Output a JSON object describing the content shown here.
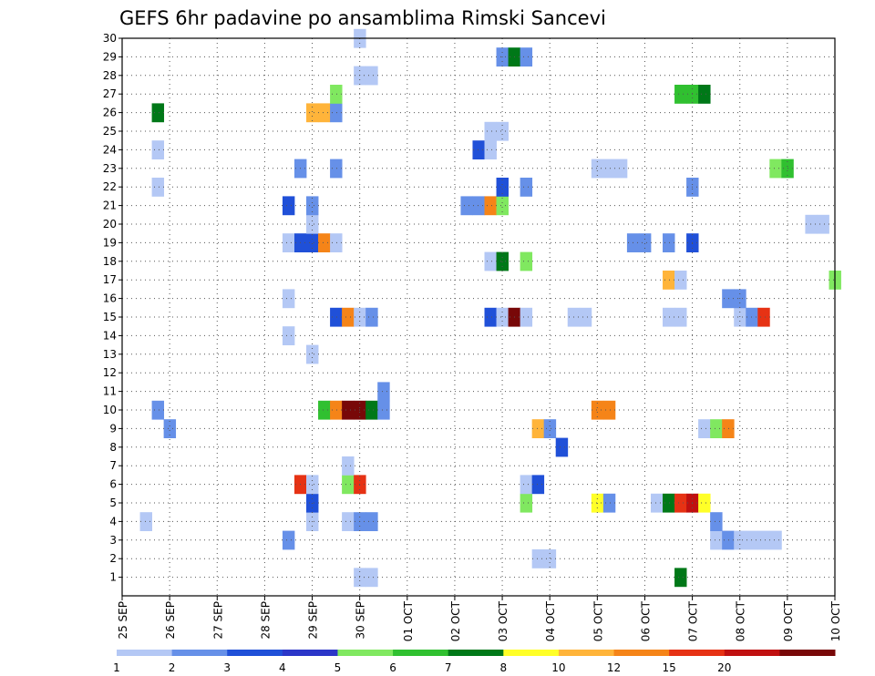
{
  "chart_data": {
    "type": "heatmap",
    "title": "GEFS 6hr padavine po ansamblima Rimski Sancevi",
    "x_tick_labels": [
      "25 SEP",
      "26 SEP",
      "27 SEP",
      "28 SEP",
      "29 SEP",
      "30 SEP",
      "01 OCT",
      "02 OCT",
      "03 OCT",
      "04 OCT",
      "05 OCT",
      "06 OCT",
      "07 OCT",
      "08 OCT",
      "09 OCT",
      "10 OCT"
    ],
    "y_tick_labels": [
      "1",
      "2",
      "3",
      "4",
      "5",
      "6",
      "7",
      "8",
      "9",
      "10",
      "11",
      "12",
      "13",
      "14",
      "15",
      "16",
      "17",
      "18",
      "19",
      "20",
      "21",
      "22",
      "23",
      "24",
      "25",
      "26",
      "27",
      "28",
      "29",
      "30"
    ],
    "x_unit": "6-hour step from 25 SEP 00z",
    "x_range": [
      0,
      60
    ],
    "y_range": [
      0,
      30
    ],
    "grid": true,
    "colorbar": {
      "bounds": [
        "1",
        "2",
        "3",
        "4",
        "5",
        "6",
        "7",
        "8",
        "10",
        "12",
        "15",
        "20"
      ],
      "colors": [
        "#b4c8f5",
        "#6690e8",
        "#2050d8",
        "#2b36c8",
        "#80e860",
        "#30c030",
        "#007818",
        "#ffff28",
        "#ffb43a",
        "#f58418",
        "#e63214",
        "#c01010",
        "#780808"
      ]
    },
    "cells": [
      {
        "x": 2,
        "y": 4,
        "c": "#b4c8f5"
      },
      {
        "x": 3,
        "y": 10,
        "c": "#6690e8"
      },
      {
        "x": 3,
        "y": 22,
        "c": "#b4c8f5"
      },
      {
        "x": 3,
        "y": 24,
        "c": "#b4c8f5"
      },
      {
        "x": 3,
        "y": 26,
        "c": "#007818"
      },
      {
        "x": 4,
        "y": 9,
        "c": "#6690e8"
      },
      {
        "x": 14,
        "y": 3,
        "c": "#6690e8"
      },
      {
        "x": 14,
        "y": 14,
        "c": "#b4c8f5"
      },
      {
        "x": 14,
        "y": 16,
        "c": "#b4c8f5"
      },
      {
        "x": 14,
        "y": 19,
        "c": "#b4c8f5"
      },
      {
        "x": 14,
        "y": 21,
        "c": "#2050d8"
      },
      {
        "x": 15,
        "y": 6,
        "c": "#e63214"
      },
      {
        "x": 15,
        "y": 19,
        "c": "#2050d8"
      },
      {
        "x": 15,
        "y": 23,
        "c": "#6690e8"
      },
      {
        "x": 16,
        "y": 4,
        "c": "#b4c8f5"
      },
      {
        "x": 16,
        "y": 5,
        "c": "#2050d8"
      },
      {
        "x": 16,
        "y": 6,
        "c": "#b4c8f5"
      },
      {
        "x": 16,
        "y": 13,
        "c": "#b4c8f5"
      },
      {
        "x": 16,
        "y": 19,
        "c": "#2050d8"
      },
      {
        "x": 16,
        "y": 20,
        "c": "#b4c8f5"
      },
      {
        "x": 16,
        "y": 21,
        "c": "#6690e8"
      },
      {
        "x": 16,
        "y": 26,
        "c": "#ffb43a"
      },
      {
        "x": 17,
        "y": 10,
        "c": "#30c030"
      },
      {
        "x": 17,
        "y": 19,
        "c": "#f58418"
      },
      {
        "x": 17,
        "y": 26,
        "c": "#ffb43a"
      },
      {
        "x": 18,
        "y": 10,
        "c": "#f58418"
      },
      {
        "x": 18,
        "y": 15,
        "c": "#2050d8"
      },
      {
        "x": 18,
        "y": 19,
        "c": "#b4c8f5"
      },
      {
        "x": 18,
        "y": 23,
        "c": "#6690e8"
      },
      {
        "x": 18,
        "y": 26,
        "c": "#6690e8"
      },
      {
        "x": 18,
        "y": 27,
        "c": "#80e860"
      },
      {
        "x": 19,
        "y": 4,
        "c": "#b4c8f5"
      },
      {
        "x": 19,
        "y": 6,
        "c": "#80e860"
      },
      {
        "x": 19,
        "y": 7,
        "c": "#b4c8f5"
      },
      {
        "x": 19,
        "y": 10,
        "c": "#780808"
      },
      {
        "x": 19,
        "y": 15,
        "c": "#f58418"
      },
      {
        "x": 20,
        "y": 1,
        "c": "#b4c8f5"
      },
      {
        "x": 20,
        "y": 4,
        "c": "#6690e8"
      },
      {
        "x": 20,
        "y": 6,
        "c": "#e63214"
      },
      {
        "x": 20,
        "y": 10,
        "c": "#780808"
      },
      {
        "x": 20,
        "y": 15,
        "c": "#b4c8f5"
      },
      {
        "x": 20,
        "y": 28,
        "c": "#b4c8f5"
      },
      {
        "x": 20,
        "y": 30,
        "c": "#b4c8f5"
      },
      {
        "x": 21,
        "y": 1,
        "c": "#b4c8f5"
      },
      {
        "x": 21,
        "y": 4,
        "c": "#6690e8"
      },
      {
        "x": 21,
        "y": 10,
        "c": "#007818"
      },
      {
        "x": 21,
        "y": 15,
        "c": "#6690e8"
      },
      {
        "x": 21,
        "y": 28,
        "c": "#b4c8f5"
      },
      {
        "x": 22,
        "y": 10,
        "c": "#6690e8"
      },
      {
        "x": 22,
        "y": 11,
        "c": "#6690e8"
      },
      {
        "x": 29,
        "y": 21,
        "c": "#6690e8"
      },
      {
        "x": 30,
        "y": 21,
        "c": "#6690e8"
      },
      {
        "x": 30,
        "y": 24,
        "c": "#2050d8"
      },
      {
        "x": 31,
        "y": 15,
        "c": "#2050d8"
      },
      {
        "x": 31,
        "y": 18,
        "c": "#b4c8f5"
      },
      {
        "x": 31,
        "y": 21,
        "c": "#f58418"
      },
      {
        "x": 31,
        "y": 24,
        "c": "#b4c8f5"
      },
      {
        "x": 31,
        "y": 25,
        "c": "#b4c8f5"
      },
      {
        "x": 32,
        "y": 15,
        "c": "#b4c8f5"
      },
      {
        "x": 32,
        "y": 18,
        "c": "#007818"
      },
      {
        "x": 32,
        "y": 21,
        "c": "#80e860"
      },
      {
        "x": 32,
        "y": 22,
        "c": "#2050d8"
      },
      {
        "x": 32,
        "y": 25,
        "c": "#b4c8f5"
      },
      {
        "x": 32,
        "y": 29,
        "c": "#6690e8"
      },
      {
        "x": 33,
        "y": 15,
        "c": "#780808"
      },
      {
        "x": 33,
        "y": 29,
        "c": "#007818"
      },
      {
        "x": 34,
        "y": 5,
        "c": "#80e860"
      },
      {
        "x": 34,
        "y": 6,
        "c": "#b4c8f5"
      },
      {
        "x": 34,
        "y": 15,
        "c": "#b4c8f5"
      },
      {
        "x": 34,
        "y": 18,
        "c": "#80e860"
      },
      {
        "x": 34,
        "y": 22,
        "c": "#6690e8"
      },
      {
        "x": 34,
        "y": 29,
        "c": "#6690e8"
      },
      {
        "x": 35,
        "y": 2,
        "c": "#b4c8f5"
      },
      {
        "x": 35,
        "y": 6,
        "c": "#2050d8"
      },
      {
        "x": 35,
        "y": 9,
        "c": "#ffb43a"
      },
      {
        "x": 36,
        "y": 2,
        "c": "#b4c8f5"
      },
      {
        "x": 36,
        "y": 9,
        "c": "#6690e8"
      },
      {
        "x": 37,
        "y": 8,
        "c": "#2050d8"
      },
      {
        "x": 38,
        "y": 15,
        "c": "#b4c8f5"
      },
      {
        "x": 39,
        "y": 15,
        "c": "#b4c8f5"
      },
      {
        "x": 40,
        "y": 5,
        "c": "#ffff28"
      },
      {
        "x": 40,
        "y": 10,
        "c": "#f58418"
      },
      {
        "x": 40,
        "y": 23,
        "c": "#b4c8f5"
      },
      {
        "x": 41,
        "y": 5,
        "c": "#6690e8"
      },
      {
        "x": 41,
        "y": 10,
        "c": "#f58418"
      },
      {
        "x": 41,
        "y": 23,
        "c": "#b4c8f5"
      },
      {
        "x": 42,
        "y": 23,
        "c": "#b4c8f5"
      },
      {
        "x": 43,
        "y": 19,
        "c": "#6690e8"
      },
      {
        "x": 44,
        "y": 19,
        "c": "#6690e8"
      },
      {
        "x": 45,
        "y": 5,
        "c": "#b4c8f5"
      },
      {
        "x": 46,
        "y": 5,
        "c": "#007818"
      },
      {
        "x": 46,
        "y": 15,
        "c": "#b4c8f5"
      },
      {
        "x": 46,
        "y": 17,
        "c": "#ffb43a"
      },
      {
        "x": 46,
        "y": 19,
        "c": "#6690e8"
      },
      {
        "x": 47,
        "y": 1,
        "c": "#007818"
      },
      {
        "x": 47,
        "y": 5,
        "c": "#e63214"
      },
      {
        "x": 47,
        "y": 15,
        "c": "#b4c8f5"
      },
      {
        "x": 47,
        "y": 17,
        "c": "#b4c8f5"
      },
      {
        "x": 47,
        "y": 27,
        "c": "#30c030"
      },
      {
        "x": 48,
        "y": 5,
        "c": "#c01010"
      },
      {
        "x": 48,
        "y": 19,
        "c": "#2050d8"
      },
      {
        "x": 48,
        "y": 22,
        "c": "#6690e8"
      },
      {
        "x": 48,
        "y": 27,
        "c": "#30c030"
      },
      {
        "x": 49,
        "y": 5,
        "c": "#ffff28"
      },
      {
        "x": 49,
        "y": 9,
        "c": "#b4c8f5"
      },
      {
        "x": 49,
        "y": 27,
        "c": "#007818"
      },
      {
        "x": 50,
        "y": 3,
        "c": "#b4c8f5"
      },
      {
        "x": 50,
        "y": 4,
        "c": "#6690e8"
      },
      {
        "x": 50,
        "y": 9,
        "c": "#80e860"
      },
      {
        "x": 51,
        "y": 3,
        "c": "#6690e8"
      },
      {
        "x": 51,
        "y": 9,
        "c": "#f58418"
      },
      {
        "x": 51,
        "y": 16,
        "c": "#6690e8"
      },
      {
        "x": 52,
        "y": 3,
        "c": "#b4c8f5"
      },
      {
        "x": 52,
        "y": 15,
        "c": "#b4c8f5"
      },
      {
        "x": 52,
        "y": 16,
        "c": "#6690e8"
      },
      {
        "x": 53,
        "y": 3,
        "c": "#b4c8f5"
      },
      {
        "x": 53,
        "y": 15,
        "c": "#6690e8"
      },
      {
        "x": 54,
        "y": 3,
        "c": "#b4c8f5"
      },
      {
        "x": 54,
        "y": 15,
        "c": "#e63214"
      },
      {
        "x": 55,
        "y": 3,
        "c": "#b4c8f5"
      },
      {
        "x": 55,
        "y": 23,
        "c": "#80e860"
      },
      {
        "x": 56,
        "y": 23,
        "c": "#30c030"
      },
      {
        "x": 58,
        "y": 20,
        "c": "#b4c8f5"
      },
      {
        "x": 59,
        "y": 20,
        "c": "#b4c8f5"
      },
      {
        "x": 60,
        "y": 17,
        "c": "#80e860"
      }
    ]
  }
}
